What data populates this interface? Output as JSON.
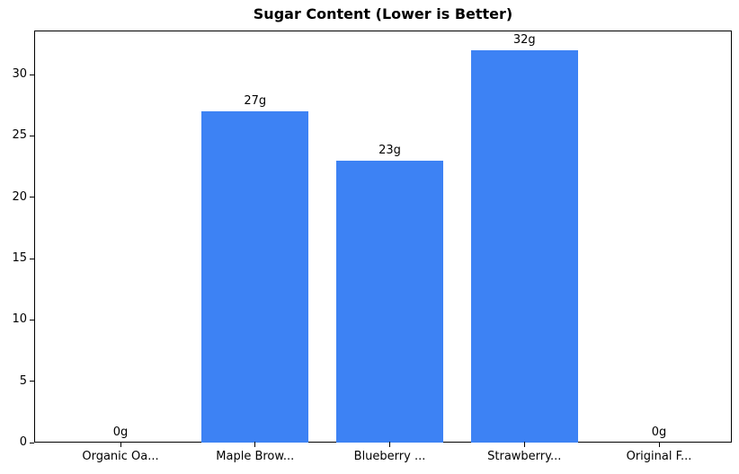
{
  "chart_data": {
    "type": "bar",
    "title": "Sugar Content (Lower is Better)",
    "categories": [
      "Organic Oa...",
      "Maple Brow...",
      "Blueberry ...",
      "Strawberry...",
      "Original F..."
    ],
    "values": [
      0,
      27,
      23,
      32,
      0
    ],
    "bar_labels": [
      "0g",
      "27g",
      "23g",
      "32g",
      "0g"
    ],
    "yticks": [
      0,
      5,
      10,
      15,
      20,
      25,
      30
    ],
    "ylim": [
      0,
      33.6
    ],
    "xlabel": "",
    "ylabel": "",
    "grid": false,
    "legend_position": "none",
    "bar_color": "#3d82f4",
    "axis_color": "#000000",
    "background_color": "#ffffff"
  }
}
